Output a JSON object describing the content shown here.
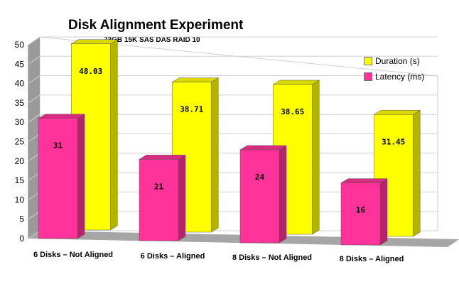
{
  "chart_data": {
    "type": "bar",
    "title": "Disk Alignment Experiment",
    "subtitle": "73GB 15K SAS DAS RAID 10",
    "categories": [
      "6 Disks – Not Aligned",
      "6 Disks – Aligned",
      "8 Disks – Not Aligned",
      "8 Disks – Aligned"
    ],
    "series": [
      {
        "name": "Duration (s)",
        "values": [
          48.03,
          38.71,
          38.65,
          31.45
        ],
        "labels": [
          "48.03",
          "38.71",
          "38.65",
          "31.45"
        ],
        "color": "#ffff00"
      },
      {
        "name": "Latency (ms)",
        "values": [
          31,
          21,
          24,
          16
        ],
        "labels": [
          "31",
          "21",
          "24",
          "16"
        ],
        "color": "#ff3399"
      }
    ],
    "ylim": [
      0,
      50
    ],
    "yticks": [
      "0",
      "5",
      "10",
      "15",
      "20",
      "25",
      "30",
      "35",
      "40",
      "45",
      "50"
    ],
    "grid": true,
    "legend_position": "top-right",
    "three_d": true
  }
}
